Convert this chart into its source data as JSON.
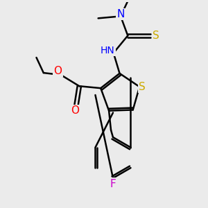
{
  "bg_color": "#ebebeb",
  "atom_colors": {
    "C": "#000000",
    "N": "#0000ff",
    "O": "#ff0000",
    "S": "#ccaa00",
    "F": "#cc00cc",
    "H": "#888888"
  },
  "bond_color": "#000000",
  "bond_width": 1.8,
  "figsize": [
    3.0,
    3.0
  ],
  "dpi": 100
}
